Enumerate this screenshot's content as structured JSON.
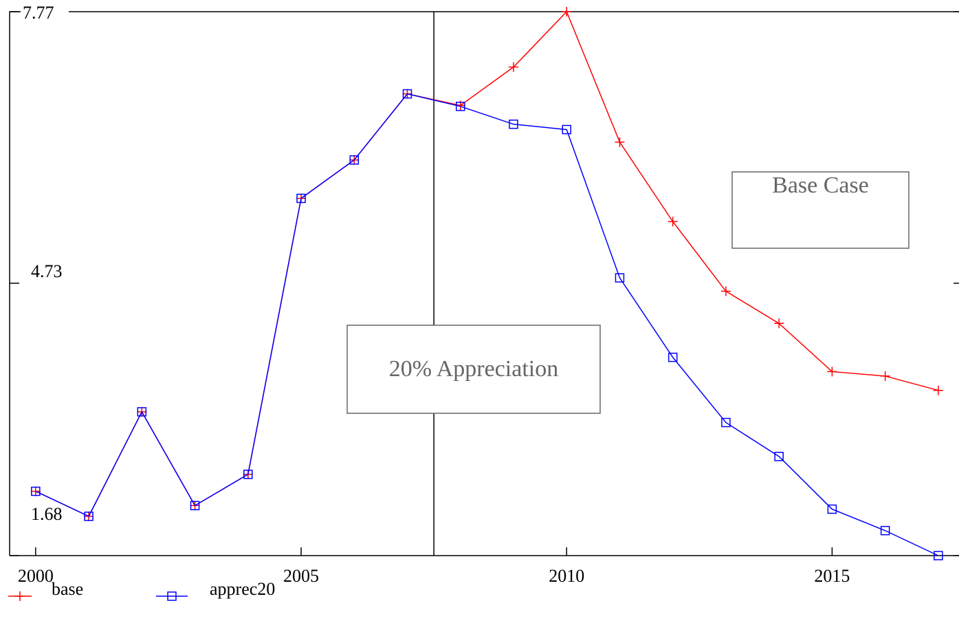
{
  "chart_data": {
    "type": "line",
    "x": [
      2000,
      2001,
      2002,
      2003,
      2004,
      2005,
      2006,
      2007,
      2008,
      2009,
      2010,
      2011,
      2012,
      2013,
      2014,
      2015,
      2016,
      2017
    ],
    "series": [
      {
        "name": "base",
        "color": "#ff0000",
        "marker": "plus",
        "values": [
          2.4,
          2.12,
          3.29,
          2.24,
          2.59,
          5.68,
          6.11,
          6.85,
          6.72,
          7.15,
          7.77,
          6.31,
          5.42,
          4.64,
          4.28,
          3.74,
          3.69,
          3.53
        ]
      },
      {
        "name": "apprec20",
        "color": "#0000ff",
        "marker": "square",
        "values": [
          2.4,
          2.12,
          3.29,
          2.24,
          2.59,
          5.68,
          6.11,
          6.85,
          6.71,
          6.51,
          6.45,
          4.79,
          3.9,
          3.17,
          2.79,
          2.2,
          1.96,
          1.68
        ]
      }
    ],
    "xlim": [
      1999.51,
      2017.39
    ],
    "xticks": [
      2000,
      2005,
      2010,
      2015
    ],
    "ylim": [
      1.68,
      7.77
    ],
    "yticks": [
      1.68,
      4.73,
      7.77
    ],
    "vline_x": 2007.5,
    "annotations": [
      {
        "text": "Base Case"
      },
      {
        "text": "20% Appreciation"
      }
    ],
    "legend": "bottom-left"
  }
}
